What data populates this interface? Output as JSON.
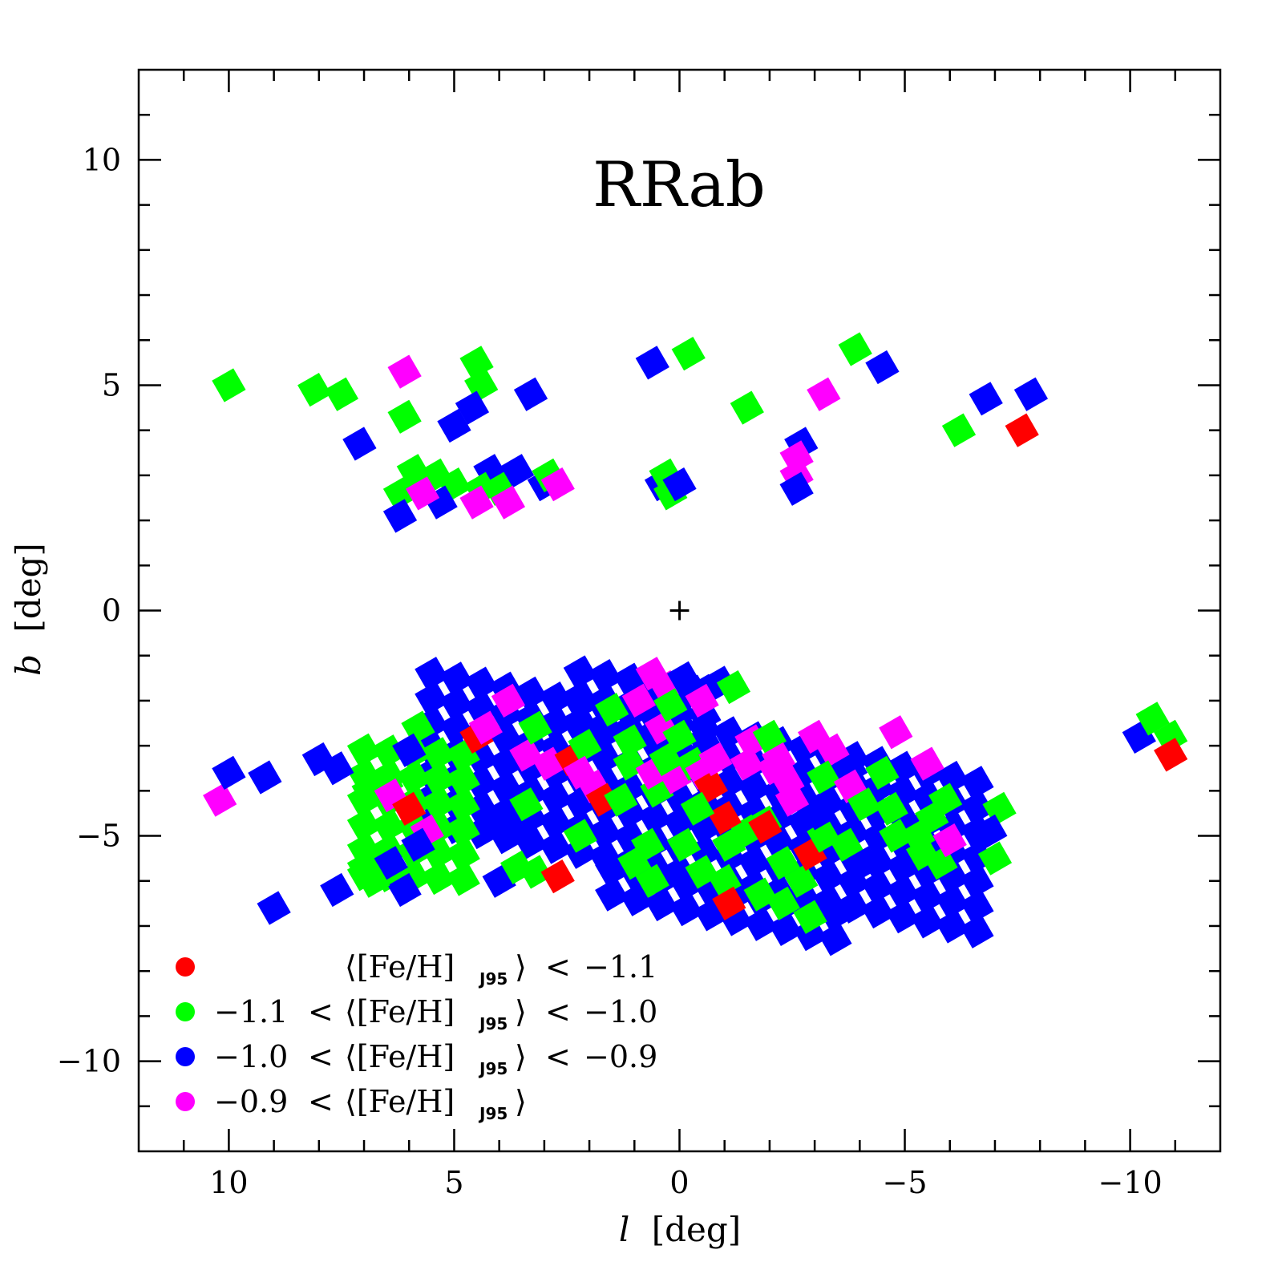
{
  "chart_data": {
    "type": "heatmap",
    "title": "RRab",
    "xlabel_italic": "l",
    "xlabel_unit": "[deg]",
    "ylabel_italic": "b",
    "ylabel_unit": "[deg]",
    "xlim": [
      12,
      -12
    ],
    "ylim": [
      -12,
      12
    ],
    "x_ticks": [
      10,
      5,
      0,
      -5,
      -10
    ],
    "x_tick_labels": [
      "10",
      "5",
      "0",
      "−5",
      "−10"
    ],
    "y_ticks": [
      10,
      5,
      0,
      -5,
      -10
    ],
    "y_tick_labels": [
      "10",
      "5",
      "0",
      "−5",
      "−10"
    ],
    "center_marker": {
      "l": 0,
      "b": 0,
      "symbol": "+"
    },
    "colors": {
      "red": "#ff0000",
      "green": "#00ff00",
      "blue": "#0000ff",
      "magenta": "#ff00ff"
    },
    "legend": [
      {
        "color": "red",
        "lower": "",
        "lower_op": "",
        "upper_op": "<",
        "upper": "−1.1"
      },
      {
        "color": "green",
        "lower": "−1.1",
        "lower_op": "<",
        "upper_op": "<",
        "upper": "−1.0"
      },
      {
        "color": "blue",
        "lower": "−1.0",
        "lower_op": "<",
        "upper_op": "<",
        "upper": "−0.9"
      },
      {
        "color": "magenta",
        "lower": "−0.9",
        "lower_op": "<",
        "upper_op": "",
        "upper": ""
      }
    ],
    "legend_quantity": "⟨[Fe/H]",
    "legend_subscript": "J95",
    "legend_close": "⟩",
    "legend_position": "bottom-left",
    "cell_size_deg": 0.55,
    "cell_tilt_deg": 30,
    "blobs": [
      {
        "color": "blue",
        "l0": 5.5,
        "l1": -6.8,
        "b0": -5.8,
        "b1": -2.3,
        "slope": 0.2,
        "step": 0.55
      },
      {
        "color": "green",
        "l0": 7.0,
        "l1": 4.8,
        "b0": -6.2,
        "b1": -3.0,
        "slope": 0.05,
        "step": 0.55
      },
      {
        "color": "blue",
        "l0": 2.2,
        "l1": -1.0,
        "b0": -2.8,
        "b1": -1.6,
        "slope": 0.15,
        "step": 0.55
      },
      {
        "color": "blue",
        "l0": 1.5,
        "l1": -3.5,
        "b0": -6.6,
        "b1": -5.6,
        "slope": 0.2,
        "step": 0.55
      }
    ],
    "cells": [
      {
        "l": 10.2,
        "b": -4.2,
        "c": "magenta"
      },
      {
        "l": 10.0,
        "b": -3.6,
        "c": "blue"
      },
      {
        "l": 9.2,
        "b": -3.7,
        "c": "blue"
      },
      {
        "l": 9.0,
        "b": -6.6,
        "c": "blue"
      },
      {
        "l": 8.0,
        "b": -3.3,
        "c": "blue"
      },
      {
        "l": 7.6,
        "b": -3.5,
        "c": "blue"
      },
      {
        "l": 6.9,
        "b": -4.0,
        "c": "green"
      },
      {
        "l": 6.5,
        "b": -3.8,
        "c": "green"
      },
      {
        "l": 6.4,
        "b": -4.1,
        "c": "magenta"
      },
      {
        "l": 6.0,
        "b": -4.4,
        "c": "red"
      },
      {
        "l": 5.6,
        "b": -4.9,
        "c": "magenta"
      },
      {
        "l": 5.8,
        "b": -2.6,
        "c": "green"
      },
      {
        "l": 6.0,
        "b": -3.1,
        "c": "blue"
      },
      {
        "l": 5.8,
        "b": -5.2,
        "c": "blue"
      },
      {
        "l": 6.6,
        "b": -5.4,
        "c": "green"
      },
      {
        "l": 7.0,
        "b": -5.7,
        "c": "green"
      },
      {
        "l": 7.6,
        "b": -6.2,
        "c": "blue"
      },
      {
        "l": 6.4,
        "b": -5.6,
        "c": "blue"
      },
      {
        "l": 6.1,
        "b": -6.2,
        "c": "blue"
      },
      {
        "l": 6.8,
        "b": -6.0,
        "c": "green"
      },
      {
        "l": 4.2,
        "b": -4.8,
        "c": "blue"
      },
      {
        "l": 4.0,
        "b": -6.0,
        "c": "blue"
      },
      {
        "l": 3.6,
        "b": -5.7,
        "c": "green"
      },
      {
        "l": 3.2,
        "b": -5.8,
        "c": "green"
      },
      {
        "l": 2.7,
        "b": -5.9,
        "c": "red"
      },
      {
        "l": 3.5,
        "b": -4.8,
        "c": "blue"
      },
      {
        "l": 3.4,
        "b": -4.3,
        "c": "green"
      },
      {
        "l": 2.2,
        "b": -5.0,
        "c": "green"
      },
      {
        "l": 4.5,
        "b": -2.8,
        "c": "red"
      },
      {
        "l": 4.3,
        "b": -2.6,
        "c": "magenta"
      },
      {
        "l": 3.8,
        "b": -2.0,
        "c": "magenta"
      },
      {
        "l": 3.4,
        "b": -3.2,
        "c": "magenta"
      },
      {
        "l": 3.2,
        "b": -2.6,
        "c": "green"
      },
      {
        "l": 2.9,
        "b": -3.4,
        "c": "magenta"
      },
      {
        "l": 2.4,
        "b": -3.3,
        "c": "red"
      },
      {
        "l": 2.1,
        "b": -3.0,
        "c": "green"
      },
      {
        "l": 2.2,
        "b": -3.6,
        "c": "magenta"
      },
      {
        "l": 1.9,
        "b": -3.9,
        "c": "magenta"
      },
      {
        "l": 1.7,
        "b": -4.2,
        "c": "red"
      },
      {
        "l": 1.3,
        "b": -4.2,
        "c": "green"
      },
      {
        "l": 1.5,
        "b": -2.2,
        "c": "green"
      },
      {
        "l": 1.1,
        "b": -2.9,
        "c": "green"
      },
      {
        "l": 1.1,
        "b": -3.4,
        "c": "green"
      },
      {
        "l": 0.9,
        "b": -2.0,
        "c": "magenta"
      },
      {
        "l": 0.4,
        "b": -2.6,
        "c": "magenta"
      },
      {
        "l": 0.0,
        "b": -2.8,
        "c": "green"
      },
      {
        "l": 0.5,
        "b": -4.0,
        "c": "green"
      },
      {
        "l": 0.6,
        "b": -3.6,
        "c": "magenta"
      },
      {
        "l": 0.1,
        "b": -3.7,
        "c": "magenta"
      },
      {
        "l": 0.3,
        "b": -3.3,
        "c": "green"
      },
      {
        "l": -0.3,
        "b": -3.4,
        "c": "green"
      },
      {
        "l": -0.5,
        "b": -3.6,
        "c": "magenta"
      },
      {
        "l": -0.7,
        "b": -3.9,
        "c": "red"
      },
      {
        "l": -0.8,
        "b": -3.3,
        "c": "magenta"
      },
      {
        "l": 0.6,
        "b": -1.4,
        "c": "magenta"
      },
      {
        "l": 0.3,
        "b": -1.7,
        "c": "magenta"
      },
      {
        "l": 0.2,
        "b": -2.1,
        "c": "green"
      },
      {
        "l": -0.1,
        "b": -1.5,
        "c": "blue"
      },
      {
        "l": -0.3,
        "b": -1.8,
        "c": "blue"
      },
      {
        "l": -0.5,
        "b": -2.0,
        "c": "magenta"
      },
      {
        "l": -0.9,
        "b": -1.6,
        "c": "blue"
      },
      {
        "l": -1.2,
        "b": -1.7,
        "c": "green"
      },
      {
        "l": -1.5,
        "b": -3.4,
        "c": "magenta"
      },
      {
        "l": -1.6,
        "b": -2.9,
        "c": "magenta"
      },
      {
        "l": -2.0,
        "b": -2.8,
        "c": "green"
      },
      {
        "l": -2.2,
        "b": -3.3,
        "c": "magenta"
      },
      {
        "l": -2.4,
        "b": -3.8,
        "c": "magenta"
      },
      {
        "l": -2.1,
        "b": -3.5,
        "c": "magenta"
      },
      {
        "l": -2.5,
        "b": -4.2,
        "c": "magenta"
      },
      {
        "l": -1.9,
        "b": -4.7,
        "c": "green"
      },
      {
        "l": -1.5,
        "b": -4.9,
        "c": "green"
      },
      {
        "l": -1.1,
        "b": -5.2,
        "c": "green"
      },
      {
        "l": -1.9,
        "b": -4.8,
        "c": "red"
      },
      {
        "l": -1.0,
        "b": -4.6,
        "c": "red"
      },
      {
        "l": -0.1,
        "b": -5.2,
        "c": "green"
      },
      {
        "l": -0.5,
        "b": -5.8,
        "c": "green"
      },
      {
        "l": -1.0,
        "b": -6.0,
        "c": "green"
      },
      {
        "l": -1.1,
        "b": -6.5,
        "c": "red"
      },
      {
        "l": -0.4,
        "b": -4.4,
        "c": "green"
      },
      {
        "l": 0.7,
        "b": -5.2,
        "c": "green"
      },
      {
        "l": 1.0,
        "b": -5.6,
        "c": "green"
      },
      {
        "l": 0.6,
        "b": -6.0,
        "c": "green"
      },
      {
        "l": -1.8,
        "b": -6.3,
        "c": "green"
      },
      {
        "l": -2.3,
        "b": -6.5,
        "c": "green"
      },
      {
        "l": -2.7,
        "b": -6.0,
        "c": "green"
      },
      {
        "l": -2.9,
        "b": -6.8,
        "c": "green"
      },
      {
        "l": -2.9,
        "b": -5.4,
        "c": "red"
      },
      {
        "l": -3.2,
        "b": -5.0,
        "c": "green"
      },
      {
        "l": -3.7,
        "b": -5.2,
        "c": "green"
      },
      {
        "l": -2.3,
        "b": -5.6,
        "c": "green"
      },
      {
        "l": -3.0,
        "b": -2.8,
        "c": "magenta"
      },
      {
        "l": -3.4,
        "b": -3.1,
        "c": "magenta"
      },
      {
        "l": -3.2,
        "b": -3.7,
        "c": "green"
      },
      {
        "l": -3.8,
        "b": -3.5,
        "c": "blue"
      },
      {
        "l": -3.8,
        "b": -3.9,
        "c": "magenta"
      },
      {
        "l": -4.5,
        "b": -3.6,
        "c": "green"
      },
      {
        "l": -4.1,
        "b": -4.3,
        "c": "green"
      },
      {
        "l": -4.7,
        "b": -4.4,
        "c": "green"
      },
      {
        "l": -4.8,
        "b": -5.0,
        "c": "green"
      },
      {
        "l": -5.3,
        "b": -5.0,
        "c": "green"
      },
      {
        "l": -5.4,
        "b": -5.4,
        "c": "green"
      },
      {
        "l": -5.8,
        "b": -5.6,
        "c": "green"
      },
      {
        "l": -5.6,
        "b": -4.6,
        "c": "green"
      },
      {
        "l": -5.9,
        "b": -4.2,
        "c": "green"
      },
      {
        "l": -5.5,
        "b": -3.4,
        "c": "magenta"
      },
      {
        "l": -6.0,
        "b": -5.1,
        "c": "magenta"
      },
      {
        "l": -4.8,
        "b": -2.7,
        "c": "magenta"
      },
      {
        "l": -7.1,
        "b": -4.4,
        "c": "green"
      },
      {
        "l": -7.0,
        "b": -5.5,
        "c": "green"
      },
      {
        "l": -6.9,
        "b": -4.9,
        "c": "blue"
      },
      {
        "l": -4.1,
        "b": -5.6,
        "c": "blue"
      },
      {
        "l": -3.1,
        "b": -4.5,
        "c": "blue"
      },
      {
        "l": 10.0,
        "b": 5.0,
        "c": "green"
      },
      {
        "l": 8.1,
        "b": 4.9,
        "c": "green"
      },
      {
        "l": 7.5,
        "b": 4.8,
        "c": "green"
      },
      {
        "l": 7.1,
        "b": 3.7,
        "c": "blue"
      },
      {
        "l": 6.1,
        "b": 5.3,
        "c": "magenta"
      },
      {
        "l": 6.1,
        "b": 4.3,
        "c": "green"
      },
      {
        "l": 4.5,
        "b": 5.5,
        "c": "green"
      },
      {
        "l": 4.4,
        "b": 5.0,
        "c": "green"
      },
      {
        "l": 4.6,
        "b": 4.5,
        "c": "blue"
      },
      {
        "l": 5.0,
        "b": 4.1,
        "c": "blue"
      },
      {
        "l": 3.3,
        "b": 4.8,
        "c": "blue"
      },
      {
        "l": 5.9,
        "b": 3.1,
        "c": "green"
      },
      {
        "l": 5.4,
        "b": 3.0,
        "c": "green"
      },
      {
        "l": 5.0,
        "b": 2.8,
        "c": "green"
      },
      {
        "l": 6.2,
        "b": 2.6,
        "c": "green"
      },
      {
        "l": 6.2,
        "b": 2.1,
        "c": "blue"
      },
      {
        "l": 5.3,
        "b": 2.4,
        "c": "blue"
      },
      {
        "l": 5.7,
        "b": 2.6,
        "c": "magenta"
      },
      {
        "l": 4.2,
        "b": 3.1,
        "c": "blue"
      },
      {
        "l": 3.6,
        "b": 3.1,
        "c": "blue"
      },
      {
        "l": 4.4,
        "b": 2.7,
        "c": "green"
      },
      {
        "l": 4.0,
        "b": 2.7,
        "c": "green"
      },
      {
        "l": 4.5,
        "b": 2.4,
        "c": "magenta"
      },
      {
        "l": 3.8,
        "b": 2.4,
        "c": "magenta"
      },
      {
        "l": 3.0,
        "b": 2.8,
        "c": "blue"
      },
      {
        "l": 2.9,
        "b": 3.0,
        "c": "green"
      },
      {
        "l": 2.7,
        "b": 2.8,
        "c": "magenta"
      },
      {
        "l": 0.6,
        "b": 5.5,
        "c": "blue"
      },
      {
        "l": -0.2,
        "b": 5.7,
        "c": "green"
      },
      {
        "l": 0.4,
        "b": 2.8,
        "c": "blue"
      },
      {
        "l": 0.2,
        "b": 2.6,
        "c": "green"
      },
      {
        "l": 0.3,
        "b": 3.0,
        "c": "green"
      },
      {
        "l": 0.0,
        "b": 2.8,
        "c": "blue"
      },
      {
        "l": -1.5,
        "b": 4.5,
        "c": "green"
      },
      {
        "l": -2.7,
        "b": 3.7,
        "c": "blue"
      },
      {
        "l": -2.6,
        "b": 3.4,
        "c": "magenta"
      },
      {
        "l": -2.6,
        "b": 3.0,
        "c": "magenta"
      },
      {
        "l": -2.6,
        "b": 2.7,
        "c": "blue"
      },
      {
        "l": -3.2,
        "b": 4.8,
        "c": "magenta"
      },
      {
        "l": -3.9,
        "b": 5.8,
        "c": "green"
      },
      {
        "l": -4.5,
        "b": 5.4,
        "c": "blue"
      },
      {
        "l": -6.2,
        "b": 4.0,
        "c": "green"
      },
      {
        "l": -6.8,
        "b": 4.7,
        "c": "blue"
      },
      {
        "l": -7.6,
        "b": 4.0,
        "c": "red"
      },
      {
        "l": -7.8,
        "b": 4.8,
        "c": "blue"
      },
      {
        "l": -10.2,
        "b": -2.8,
        "c": "blue"
      },
      {
        "l": -10.5,
        "b": -2.4,
        "c": "green"
      },
      {
        "l": -10.9,
        "b": -2.8,
        "c": "green"
      },
      {
        "l": -10.9,
        "b": -3.2,
        "c": "red"
      }
    ]
  }
}
